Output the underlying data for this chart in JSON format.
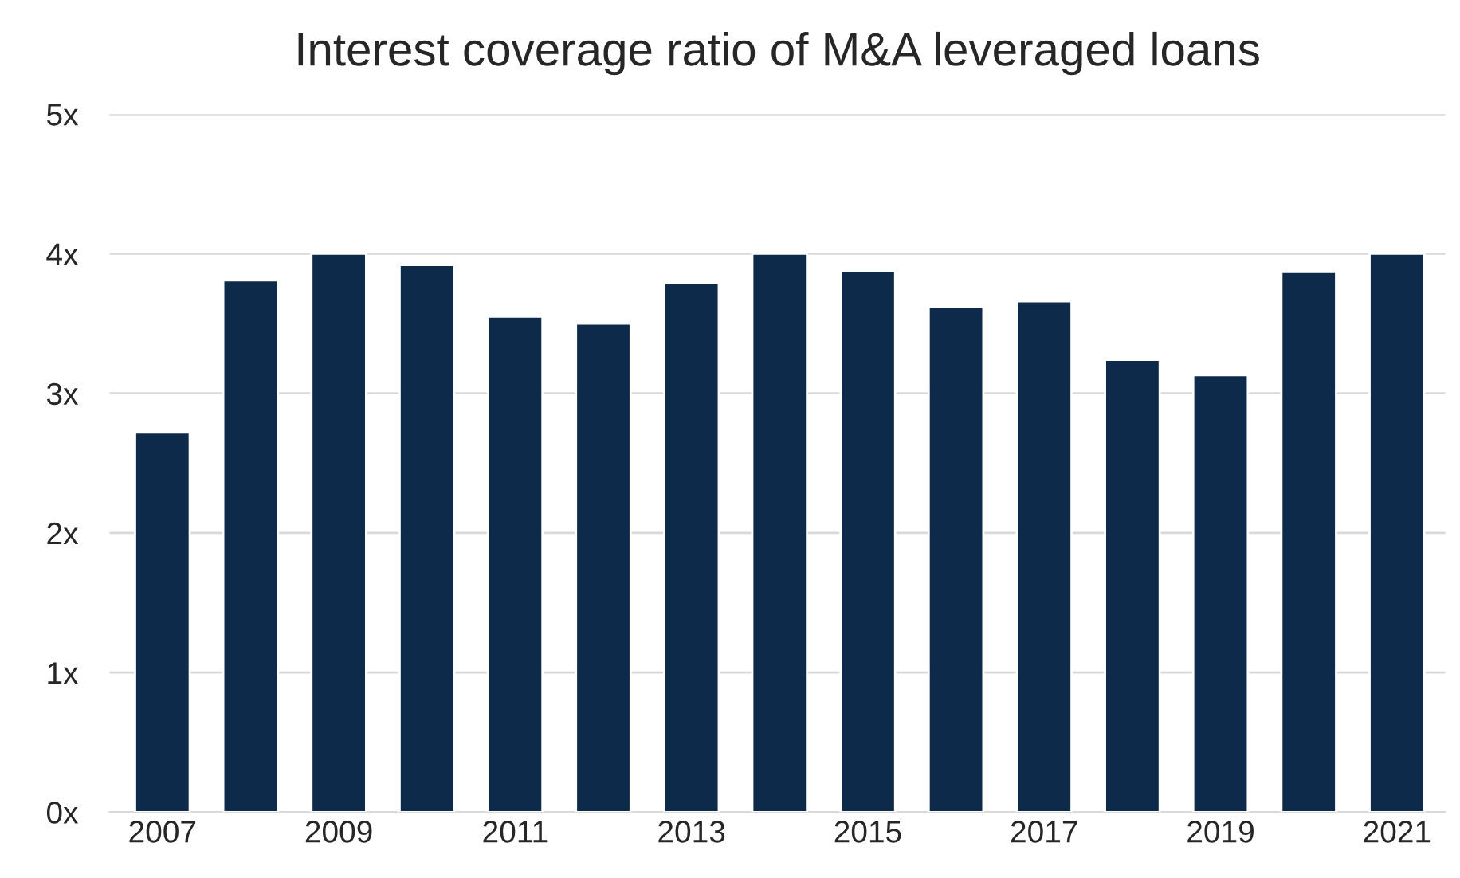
{
  "chart_data": {
    "type": "bar",
    "title": "Interest coverage ratio of M&A leveraged loans",
    "categories": [
      "2007",
      null,
      "2009",
      null,
      "2011",
      null,
      "2013",
      null,
      "2015",
      null,
      "2017",
      null,
      "2019",
      null,
      "2021"
    ],
    "values": [
      2.72,
      3.81,
      4.0,
      3.92,
      3.55,
      3.5,
      3.79,
      4.0,
      3.88,
      3.62,
      3.66,
      3.24,
      3.13,
      3.87,
      4.0
    ],
    "color": "#0e2a4a",
    "ylim": [
      0,
      5
    ],
    "yticks": [
      {
        "value": 0,
        "label": "0x"
      },
      {
        "value": 1,
        "label": "1x"
      },
      {
        "value": 2,
        "label": "2x"
      },
      {
        "value": 3,
        "label": "3x"
      },
      {
        "value": 4,
        "label": "4x"
      },
      {
        "value": 5,
        "label": "5x"
      }
    ],
    "grid": "y"
  }
}
